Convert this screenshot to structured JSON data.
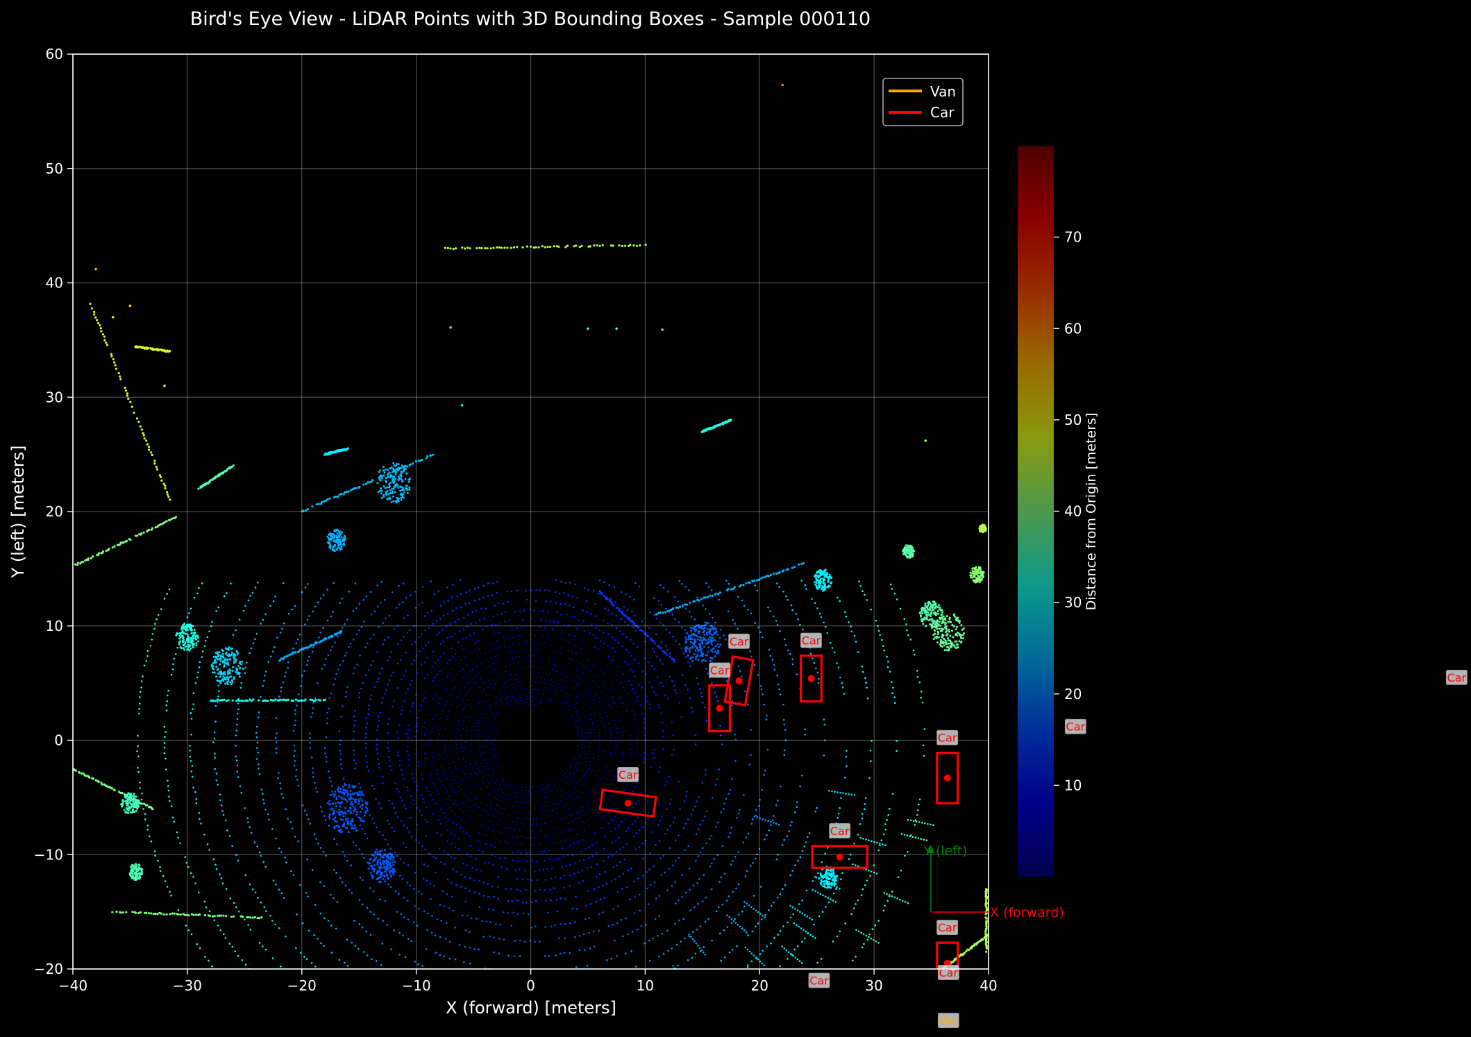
{
  "chart_data": {
    "type": "scatter",
    "title": "Bird's Eye View - LiDAR Points with 3D Bounding Boxes - Sample 000110",
    "xlabel": "X (forward) [meters]",
    "ylabel": "Y (left) [meters]",
    "xlim": [
      -40,
      40
    ],
    "ylim": [
      -20,
      60
    ],
    "xticks": [
      -40,
      -30,
      -20,
      -10,
      0,
      10,
      20,
      30,
      40
    ],
    "yticks": [
      -20,
      -10,
      0,
      10,
      20,
      30,
      40,
      50,
      60
    ],
    "tick_labels_x": [
      "−40",
      "−30",
      "−20",
      "−10",
      "0",
      "10",
      "20",
      "30",
      "40"
    ],
    "tick_labels_y": [
      "−20",
      "−10",
      "0",
      "10",
      "20",
      "30",
      "40",
      "50",
      "60"
    ],
    "grid": true,
    "background": "#000000",
    "legend": {
      "placement": "top-right",
      "entries": [
        {
          "label": "Van",
          "color": "#ffa500"
        },
        {
          "label": "Car",
          "color": "#ff0000"
        }
      ]
    },
    "colorbar": {
      "label": "Distance from Origin [meters]",
      "range": [
        0,
        80
      ],
      "ticks": [
        10,
        20,
        30,
        40,
        50,
        60,
        70
      ],
      "colormap": "jet",
      "alpha": 0.6
    },
    "boxes": [
      {
        "label": "Car",
        "cx": 8.5,
        "cy": -5.5,
        "length": 4.7,
        "width": 1.7,
        "yaw_deg": -8
      },
      {
        "label": "Car",
        "cx": 16.5,
        "cy": 2.8,
        "length": 1.8,
        "width": 4.0,
        "yaw_deg": 0
      },
      {
        "label": "Car",
        "cx": 18.2,
        "cy": 5.2,
        "length": 1.8,
        "width": 4.0,
        "yaw_deg": -10
      },
      {
        "label": "Car",
        "cx": 24.5,
        "cy": 5.4,
        "length": 1.8,
        "width": 4.0,
        "yaw_deg": 0
      },
      {
        "label": "Car",
        "cx": 36.4,
        "cy": -3.3,
        "length": 1.8,
        "width": 4.4,
        "yaw_deg": 0
      },
      {
        "label": "Car",
        "cx": 27.0,
        "cy": -10.2,
        "length": 4.8,
        "width": 1.9,
        "yaw_deg": 0
      },
      {
        "label": "Car",
        "cx": 36.4,
        "cy": -19.5,
        "length": 1.8,
        "width": 3.6,
        "yaw_deg": 0
      }
    ],
    "off_axes_labels": [
      {
        "text": "Car",
        "color": "#ff0000",
        "x": 25.2,
        "y": -21.0
      },
      {
        "text": "Car",
        "color": "#ff0000",
        "x": 36.5,
        "y": -20.3
      },
      {
        "text": "Van",
        "color": "#ffa500",
        "x": 36.5,
        "y": -24.5
      },
      {
        "text": "Car",
        "color": "#ff0000",
        "x": 47.6,
        "y": 1.2
      },
      {
        "text": "Car",
        "color": "#ff0000",
        "x": 80.9,
        "y": 5.5
      }
    ],
    "ego_axes": {
      "origin": [
        35.0,
        -15.0
      ],
      "x_label": "X (forward)",
      "y_label": "Y (left)",
      "x_color": "#ff0000",
      "y_color": "#008000"
    },
    "point_segments": [
      {
        "from": [
          -38.5,
          38.2
        ],
        "to": [
          -31.5,
          21.0
        ],
        "dist": 47
      },
      {
        "from": [
          -31.0,
          19.5
        ],
        "to": [
          -40.0,
          15.2
        ],
        "dist": 40
      },
      {
        "from": [
          -34.5,
          34.4
        ],
        "to": [
          -31.5,
          34.0
        ],
        "dist": 47
      },
      {
        "from": [
          -7.5,
          43.0
        ],
        "to": [
          10.0,
          43.3
        ],
        "dist": 44
      },
      {
        "from": [
          -29.0,
          22.0
        ],
        "to": [
          -26.0,
          24.0
        ],
        "dist": 36
      },
      {
        "from": [
          -20.0,
          20.0
        ],
        "to": [
          -8.5,
          25.0
        ],
        "dist": 25
      },
      {
        "from": [
          -18.0,
          25.0
        ],
        "to": [
          -16.0,
          25.5
        ],
        "dist": 29
      },
      {
        "from": [
          11.0,
          11.0
        ],
        "to": [
          24.0,
          15.5
        ],
        "dist": 24
      },
      {
        "from": [
          6.0,
          13.0
        ],
        "to": [
          12.5,
          7.0
        ],
        "dist": 14
      },
      {
        "from": [
          -28.0,
          3.5
        ],
        "to": [
          -18.0,
          3.5
        ],
        "dist": 31
      },
      {
        "from": [
          -22.0,
          7.0
        ],
        "to": [
          -16.5,
          9.5
        ],
        "dist": 23
      },
      {
        "from": [
          -36.5,
          -15.0
        ],
        "to": [
          -23.5,
          -15.5
        ],
        "dist": 40
      },
      {
        "from": [
          15.0,
          27.0
        ],
        "to": [
          17.5,
          28.0
        ],
        "dist": 32
      },
      {
        "from": [
          -40.0,
          -2.5
        ],
        "to": [
          -33.0,
          -6.0
        ],
        "dist": 40
      },
      {
        "from": [
          36.0,
          -20.0
        ],
        "to": [
          40.0,
          -17.0
        ],
        "dist": 43
      },
      {
        "from": [
          39.8,
          -13.0
        ],
        "to": [
          39.8,
          -18.5
        ],
        "dist": 44
      }
    ],
    "point_clusters": [
      {
        "x": -26.5,
        "y": 6.5,
        "spread": 1.4,
        "dist": 27
      },
      {
        "x": -16.0,
        "y": -6.0,
        "spread": 1.8,
        "dist": 17
      },
      {
        "x": -13.0,
        "y": -11.0,
        "spread": 1.2,
        "dist": 17
      },
      {
        "x": -12.0,
        "y": 22.5,
        "spread": 1.5,
        "dist": 25
      },
      {
        "x": -35.0,
        "y": -5.5,
        "spread": 0.8,
        "dist": 35
      },
      {
        "x": -34.5,
        "y": -11.5,
        "spread": 0.6,
        "dist": 36
      },
      {
        "x": 15.0,
        "y": 8.5,
        "spread": 1.6,
        "dist": 18
      },
      {
        "x": 25.5,
        "y": 14.0,
        "spread": 0.8,
        "dist": 29
      },
      {
        "x": 35.0,
        "y": 11.0,
        "spread": 1.0,
        "dist": 37
      },
      {
        "x": 36.5,
        "y": 9.5,
        "spread": 1.4,
        "dist": 38
      },
      {
        "x": 39.0,
        "y": 14.5,
        "spread": 0.6,
        "dist": 41
      },
      {
        "x": 33.0,
        "y": 16.5,
        "spread": 0.5,
        "dist": 37
      },
      {
        "x": 39.5,
        "y": 18.5,
        "spread": 0.3,
        "dist": 44
      },
      {
        "x": -17.0,
        "y": 17.5,
        "spread": 0.8,
        "dist": 24
      },
      {
        "x": 26.0,
        "y": -12.0,
        "spread": 0.8,
        "dist": 29
      },
      {
        "x": -30.0,
        "y": 9.0,
        "spread": 1.0,
        "dist": 32
      }
    ],
    "isolated_points": [
      {
        "x": 22.0,
        "y": 57.3,
        "dist": 61
      },
      {
        "x": -38.0,
        "y": 41.2,
        "dist": 56
      },
      {
        "x": -35.0,
        "y": 38.0,
        "dist": 52
      },
      {
        "x": -36.5,
        "y": 37.0,
        "dist": 52
      },
      {
        "x": -32.0,
        "y": 31.0,
        "dist": 45
      },
      {
        "x": -7.0,
        "y": 36.1,
        "dist": 37
      },
      {
        "x": 5.0,
        "y": 36.0,
        "dist": 36
      },
      {
        "x": 7.5,
        "y": 36.0,
        "dist": 37
      },
      {
        "x": 11.5,
        "y": 35.9,
        "dist": 37
      },
      {
        "x": 34.5,
        "y": 26.2,
        "dist": 43
      },
      {
        "x": -6.0,
        "y": 29.3,
        "dist": 30
      }
    ]
  }
}
